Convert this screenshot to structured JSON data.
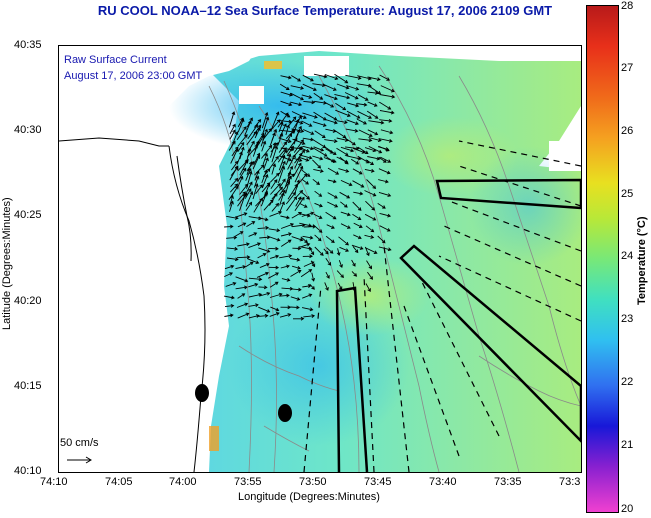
{
  "title": "RU COOL  NOAA–12  Sea Surface Temperature:  August 17, 2006 2109 GMT",
  "legend": {
    "line1": "Raw Surface Current",
    "line2": "August 17, 2006 23:00 GMT",
    "scale_label": "50 cm/s"
  },
  "axes": {
    "xlabel": "Longitude (Degrees:Minutes)",
    "ylabel": "Latitude (Degrees:Minutes)",
    "xticks": [
      "74:10",
      "74:05",
      "74:00",
      "73:55",
      "73:50",
      "73:45",
      "73:40",
      "73:35",
      "73:3"
    ],
    "yticks": [
      "40:35",
      "40:30",
      "40:25",
      "40:20",
      "40:15",
      "40:10"
    ]
  },
  "colorbar": {
    "title": "Temperature (°C)",
    "ticks": [
      "28",
      "27",
      "26",
      "25",
      "24",
      "23",
      "22",
      "21",
      "20"
    ],
    "range": [
      20,
      28
    ]
  },
  "colors": {
    "title": "#0a1aa8",
    "legend": "#1818b0",
    "water_base": "#7ee0c8"
  }
}
